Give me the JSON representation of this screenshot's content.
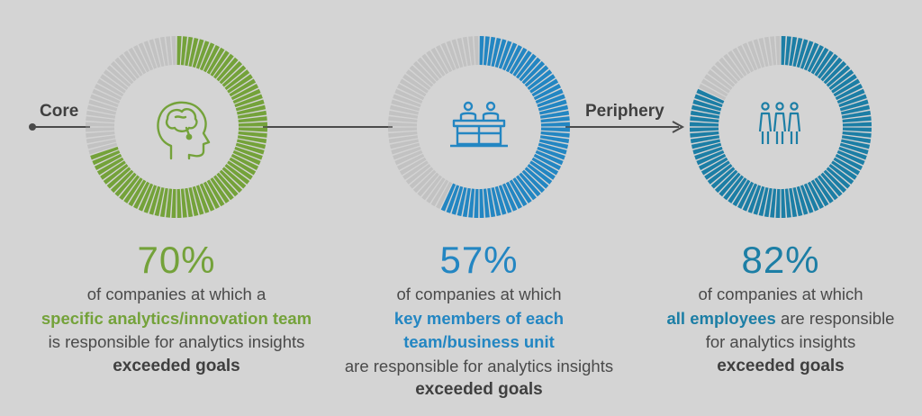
{
  "colors": {
    "background": "#d4d4d4",
    "ring_empty": "#c2c2c2",
    "green": "#74a23a",
    "blue": "#2386c2",
    "teal": "#1c7ea5",
    "arrow": "#4a4a4a",
    "text": "#4a4a4a"
  },
  "flow": {
    "start_label": "Core",
    "end_label": "Periphery"
  },
  "chart_data": {
    "type": "pie",
    "unit": "%",
    "series": [
      {
        "percent_label": "70%",
        "value": 70,
        "color": "#74a23a",
        "icon": "head-brain-icon",
        "text_lines": [
          {
            "text": "of companies at which a",
            "style": "normal"
          },
          {
            "text": "specific analytics/innovation team",
            "style": "highlight"
          },
          {
            "text": "is responsible for analytics insights",
            "style": "normal"
          },
          {
            "text": "exceeded goals",
            "style": "bold"
          }
        ]
      },
      {
        "percent_label": "57%",
        "value": 57,
        "color": "#2386c2",
        "icon": "team-at-desk-icon",
        "text_lines": [
          {
            "text": "of companies at which",
            "style": "normal"
          },
          {
            "text": "key members of each",
            "style": "highlight"
          },
          {
            "text": "team/business unit",
            "style": "highlight"
          },
          {
            "text": "are responsible for analytics insights",
            "style": "normal"
          },
          {
            "text": "exceeded goals",
            "style": "bold"
          }
        ]
      },
      {
        "percent_label": "82%",
        "value": 82,
        "color": "#1c7ea5",
        "icon": "three-people-icon",
        "text_lines": [
          {
            "text": "of companies at which",
            "style": "normal"
          },
          {
            "text_parts": [
              {
                "text": "all employees",
                "style": "highlight"
              },
              {
                "text": " are responsible",
                "style": "normal"
              }
            ]
          },
          {
            "text": "for analytics insights",
            "style": "normal"
          },
          {
            "text": "exceeded goals",
            "style": "bold"
          }
        ]
      }
    ]
  }
}
